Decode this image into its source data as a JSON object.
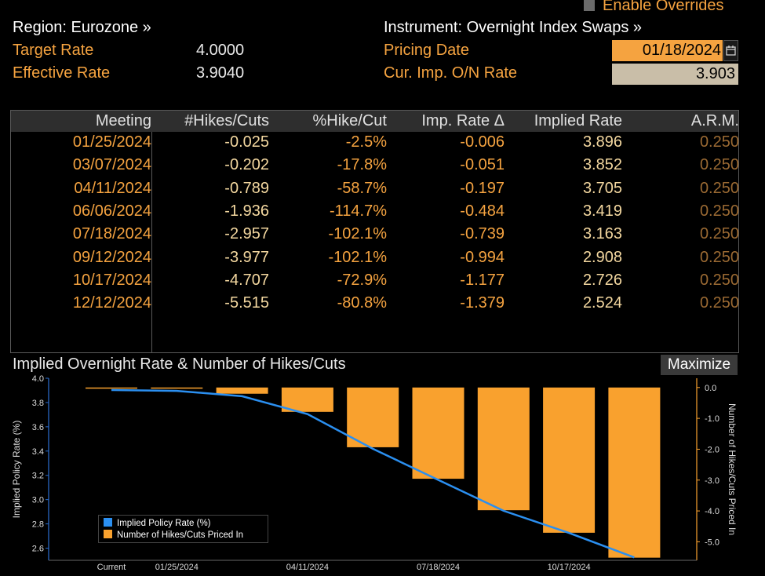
{
  "header": {
    "enable_overrides": "Enable Overrides",
    "region": "Region: Eurozone »",
    "instrument": "Instrument: Overnight Index Swaps »",
    "target_rate_label": "Target Rate",
    "target_rate_value": "4.0000",
    "effective_rate_label": "Effective Rate",
    "effective_rate_value": "3.9040",
    "pricing_date_label": "Pricing Date",
    "pricing_date_value": "01/18/2024",
    "cur_imp_label": "Cur. Imp. O/N Rate",
    "cur_imp_value": "3.903"
  },
  "table": {
    "columns": [
      "Meeting",
      "#Hikes/Cuts",
      "%Hike/Cut",
      "Imp. Rate Δ",
      "Implied Rate",
      "A.R.M."
    ],
    "rows": [
      [
        "01/25/2024",
        "-0.025",
        "-2.5%",
        "-0.006",
        "3.896",
        "0.250"
      ],
      [
        "03/07/2024",
        "-0.202",
        "-17.8%",
        "-0.051",
        "3.852",
        "0.250"
      ],
      [
        "04/11/2024",
        "-0.789",
        "-58.7%",
        "-0.197",
        "3.705",
        "0.250"
      ],
      [
        "06/06/2024",
        "-1.936",
        "-114.7%",
        "-0.484",
        "3.419",
        "0.250"
      ],
      [
        "07/18/2024",
        "-2.957",
        "-102.1%",
        "-0.739",
        "3.163",
        "0.250"
      ],
      [
        "09/12/2024",
        "-3.977",
        "-102.1%",
        "-0.994",
        "2.908",
        "0.250"
      ],
      [
        "10/17/2024",
        "-4.707",
        "-72.9%",
        "-1.177",
        "2.726",
        "0.250"
      ],
      [
        "12/12/2024",
        "-5.515",
        "-80.8%",
        "-1.379",
        "2.524",
        "0.250"
      ]
    ]
  },
  "chart": {
    "title": "Implied Overnight Rate & Number of Hikes/Cuts",
    "maximize_label": "Maximize"
  },
  "chart_data": {
    "type": "bar",
    "categories": [
      "Current",
      "01/25/2024",
      "03/07/2024",
      "04/11/2024",
      "06/06/2024",
      "07/18/2024",
      "09/12/2024",
      "10/17/2024",
      "12/12/2024"
    ],
    "x_tick_labels": [
      "Current",
      "01/25/2024",
      "04/11/2024",
      "07/18/2024",
      "10/17/2024"
    ],
    "series": [
      {
        "name": "Implied Policy Rate (%)",
        "type": "line",
        "axis": "left",
        "color": "#2b8ff0",
        "values": [
          3.903,
          3.896,
          3.852,
          3.705,
          3.419,
          3.163,
          2.908,
          2.726,
          2.524
        ]
      },
      {
        "name": "Number of Hikes/Cuts Priced In",
        "type": "bar",
        "axis": "right",
        "color": "#f9a12e",
        "values": [
          0,
          -0.025,
          -0.202,
          -0.789,
          -1.936,
          -2.957,
          -3.977,
          -4.707,
          -5.515
        ]
      }
    ],
    "ylabel_left": "Implied Policy Rate (%)",
    "ylabel_right": "Number of Hikes/Cuts Priced In",
    "ylim_left": [
      2.5,
      4.0
    ],
    "yticks_left": [
      "4.0",
      "3.8",
      "3.6",
      "3.4",
      "3.2",
      "3.0",
      "2.8",
      "2.6"
    ],
    "ylim_right": [
      -5.6,
      0.3
    ],
    "yticks_right": [
      "0.0",
      "-1.0",
      "-2.0",
      "-3.0",
      "-4.0",
      "-5.0"
    ],
    "legend_position": "bottom-left"
  }
}
